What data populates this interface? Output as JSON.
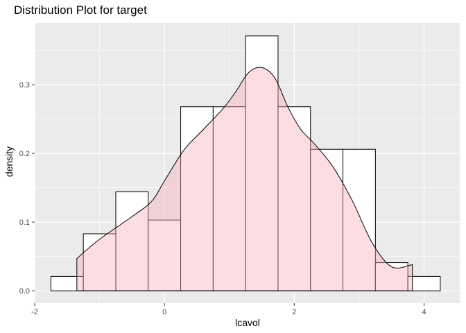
{
  "chart_data": {
    "type": "histogram",
    "title": "Distribution Plot for target",
    "xlabel": "lcavol",
    "ylabel": "density",
    "xlim": [
      -2.0,
      4.55
    ],
    "ylim": [
      -0.018,
      0.39
    ],
    "xticks": [
      -2,
      0,
      2,
      4
    ],
    "xtick_labels": [
      "-2",
      "0",
      "2",
      "4"
    ],
    "yticks": [
      0.0,
      0.1,
      0.2,
      0.3
    ],
    "ytick_labels": [
      "0.0",
      "0.1",
      "0.2",
      "0.3"
    ],
    "grid": true,
    "bin_width": 0.5,
    "bins": [
      {
        "x0": -1.75,
        "x1": -1.25,
        "density": 0.021
      },
      {
        "x0": -1.25,
        "x1": -0.75,
        "density": 0.083
      },
      {
        "x0": -0.75,
        "x1": -0.25,
        "density": 0.144
      },
      {
        "x0": -0.25,
        "x1": 0.25,
        "density": 0.103
      },
      {
        "x0": 0.25,
        "x1": 0.75,
        "density": 0.268
      },
      {
        "x0": 0.75,
        "x1": 1.25,
        "density": 0.268
      },
      {
        "x0": 1.25,
        "x1": 1.75,
        "density": 0.371
      },
      {
        "x0": 1.75,
        "x1": 2.25,
        "density": 0.268
      },
      {
        "x0": 2.25,
        "x1": 2.75,
        "density": 0.206
      },
      {
        "x0": 2.75,
        "x1": 3.25,
        "density": 0.206
      },
      {
        "x0": 3.25,
        "x1": 3.75,
        "density": 0.041
      },
      {
        "x0": 3.75,
        "x1": 4.25,
        "density": 0.021
      }
    ],
    "density_curve": {
      "x": [
        -1.35,
        -1.0,
        -0.5,
        -0.2,
        0.0,
        0.3,
        0.6,
        0.9,
        1.1,
        1.3,
        1.5,
        1.7,
        1.9,
        2.1,
        2.3,
        2.6,
        2.9,
        3.2,
        3.5,
        3.82
      ],
      "y": [
        0.047,
        0.075,
        0.108,
        0.13,
        0.16,
        0.205,
        0.235,
        0.265,
        0.29,
        0.318,
        0.325,
        0.31,
        0.268,
        0.235,
        0.215,
        0.18,
        0.13,
        0.07,
        0.035,
        0.038
      ]
    },
    "colors": {
      "panel": "#ebebeb",
      "grid": "#ffffff",
      "bar_fill": "#ffffff",
      "bar_stroke": "#000000",
      "density_fill": "#f8aab7",
      "density_stroke": "#000000"
    }
  }
}
